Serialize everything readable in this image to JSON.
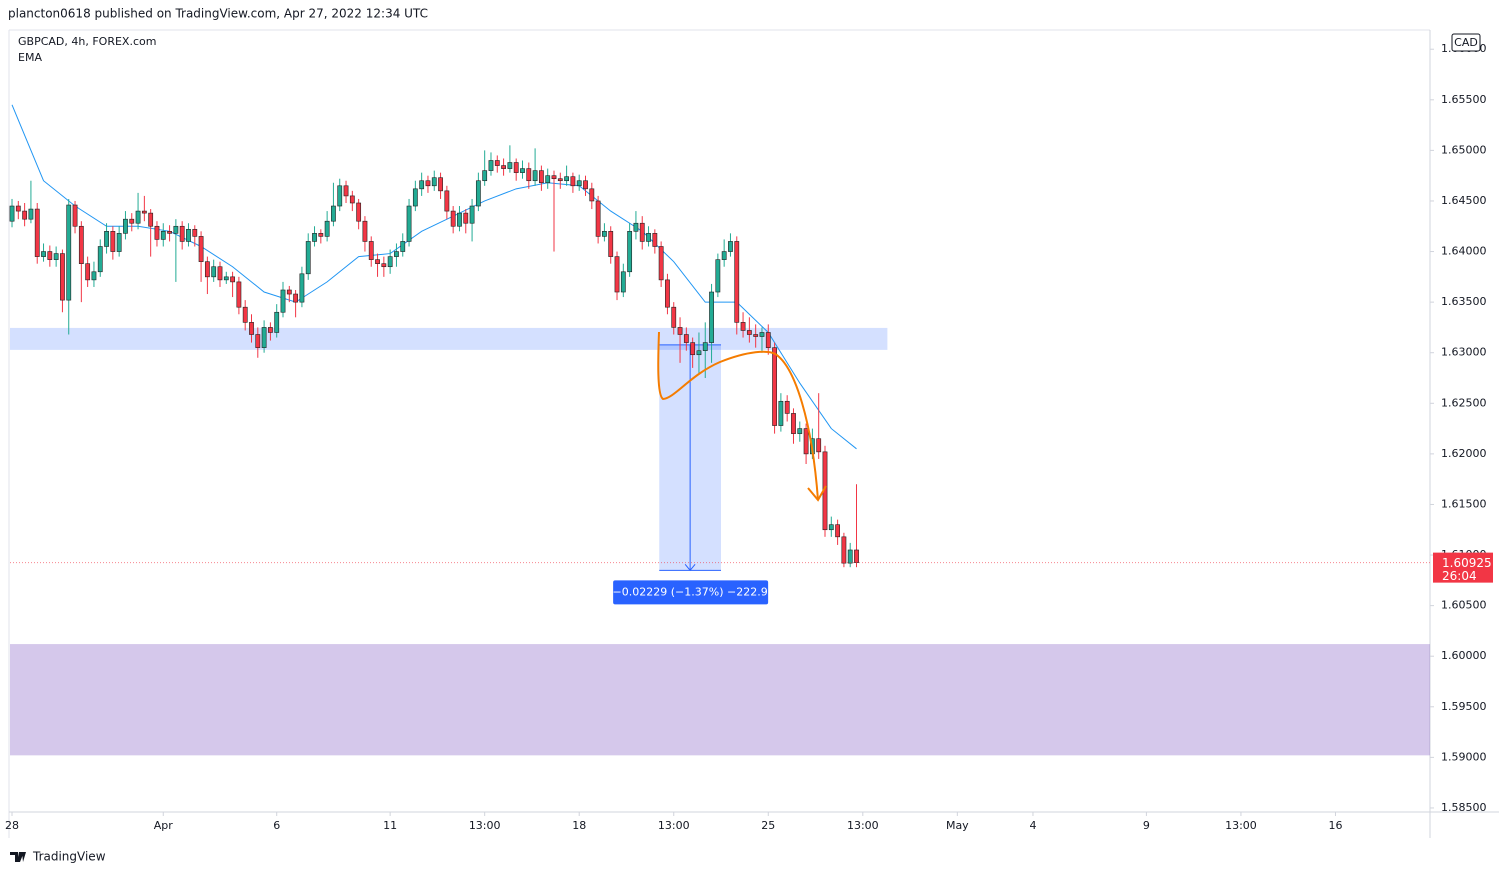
{
  "chart_data": {
    "type": "candlestick",
    "published": "plancton0618 published on TradingView.com, Apr 27, 2022 12:34 UTC",
    "title": "GBPCAD, 4h, FOREX.com",
    "currency": "CAD",
    "brand": "TradingView",
    "countdown": "26:04",
    "up_color": "#22ab94",
    "down_color": "#f23645",
    "xlim": [
      -0.32,
      225
    ],
    "ylim": [
      1.5846,
      1.6619
    ],
    "xticks": [
      {
        "value": 0,
        "label": "28"
      },
      {
        "value": 24,
        "label": "Apr"
      },
      {
        "value": 42,
        "label": "6"
      },
      {
        "value": 60,
        "label": "11"
      },
      {
        "value": 75,
        "label": "13:00"
      },
      {
        "value": 90,
        "label": "18"
      },
      {
        "value": 105,
        "label": "13:00"
      },
      {
        "value": 120,
        "label": "25"
      },
      {
        "value": 135,
        "label": "13:00"
      },
      {
        "value": 150,
        "label": "May"
      },
      {
        "value": 162,
        "label": "4"
      },
      {
        "value": 180,
        "label": "9"
      },
      {
        "value": 195,
        "label": "13:00"
      },
      {
        "value": 210,
        "label": "16"
      }
    ],
    "yticks": [
      {
        "value": 1.585,
        "label": "1.58500"
      },
      {
        "value": 1.59,
        "label": "1.59000"
      },
      {
        "value": 1.595,
        "label": "1.59500"
      },
      {
        "value": 1.6,
        "label": "1.60000"
      },
      {
        "value": 1.605,
        "label": "1.60500"
      },
      {
        "value": 1.61,
        "label": "1.61000"
      },
      {
        "value": 1.615,
        "label": "1.61500"
      },
      {
        "value": 1.62,
        "label": "1.62000"
      },
      {
        "value": 1.625,
        "label": "1.62500"
      },
      {
        "value": 1.63,
        "label": "1.63000"
      },
      {
        "value": 1.635,
        "label": "1.63500"
      },
      {
        "value": 1.64,
        "label": "1.64000"
      },
      {
        "value": 1.645,
        "label": "1.64500"
      },
      {
        "value": 1.65,
        "label": "1.65000"
      },
      {
        "value": 1.655,
        "label": "1.65500"
      },
      {
        "value": 1.66,
        "label": "1.66000"
      }
    ],
    "candles": [
      [
        1.643,
        1.6452,
        1.6424,
        1.6445
      ],
      [
        1.6445,
        1.645,
        1.6432,
        1.644
      ],
      [
        1.644,
        1.6448,
        1.6425,
        1.6432
      ],
      [
        1.6432,
        1.647,
        1.6428,
        1.6442
      ],
      [
        1.6442,
        1.6448,
        1.6388,
        1.6395
      ],
      [
        1.6395,
        1.6408,
        1.639,
        1.64
      ],
      [
        1.64,
        1.6406,
        1.6385,
        1.6392
      ],
      [
        1.6392,
        1.6405,
        1.6385,
        1.6398
      ],
      [
        1.6398,
        1.6402,
        1.634,
        1.6352
      ],
      [
        1.6352,
        1.6452,
        1.6318,
        1.6446
      ],
      [
        1.6446,
        1.645,
        1.6418,
        1.6425
      ],
      [
        1.6425,
        1.643,
        1.635,
        1.6388
      ],
      [
        1.6388,
        1.6395,
        1.6365,
        1.6372
      ],
      [
        1.6372,
        1.639,
        1.6365,
        1.638
      ],
      [
        1.638,
        1.6412,
        1.6375,
        1.6405
      ],
      [
        1.6405,
        1.6428,
        1.6398,
        1.642
      ],
      [
        1.642,
        1.6425,
        1.6392,
        1.64
      ],
      [
        1.64,
        1.6425,
        1.6395,
        1.6418
      ],
      [
        1.6418,
        1.644,
        1.6412,
        1.6432
      ],
      [
        1.6432,
        1.6438,
        1.642,
        1.6428
      ],
      [
        1.6428,
        1.6458,
        1.6422,
        1.644
      ],
      [
        1.644,
        1.6455,
        1.643,
        1.6438
      ],
      [
        1.6438,
        1.6442,
        1.6395,
        1.6425
      ],
      [
        1.6425,
        1.643,
        1.6405,
        1.6412
      ],
      [
        1.6412,
        1.6428,
        1.6405,
        1.642
      ],
      [
        1.642,
        1.6426,
        1.641,
        1.6418
      ],
      [
        1.6418,
        1.6432,
        1.637,
        1.6425
      ],
      [
        1.6425,
        1.643,
        1.6402,
        1.641
      ],
      [
        1.641,
        1.6428,
        1.6405,
        1.6422
      ],
      [
        1.6422,
        1.6426,
        1.6405,
        1.6415
      ],
      [
        1.6415,
        1.642,
        1.637,
        1.639
      ],
      [
        1.639,
        1.6395,
        1.6358,
        1.6375
      ],
      [
        1.6375,
        1.6392,
        1.637,
        1.6385
      ],
      [
        1.6385,
        1.639,
        1.6365,
        1.6372
      ],
      [
        1.6372,
        1.638,
        1.6368,
        1.6375
      ],
      [
        1.6375,
        1.638,
        1.6355,
        1.637
      ],
      [
        1.637,
        1.6375,
        1.6338,
        1.6345
      ],
      [
        1.6345,
        1.6352,
        1.6322,
        1.633
      ],
      [
        1.633,
        1.6338,
        1.631,
        1.6318
      ],
      [
        1.6318,
        1.6325,
        1.6295,
        1.6305
      ],
      [
        1.6305,
        1.6332,
        1.63,
        1.6325
      ],
      [
        1.6325,
        1.633,
        1.6312,
        1.632
      ],
      [
        1.632,
        1.6348,
        1.6315,
        1.634
      ],
      [
        1.634,
        1.637,
        1.6335,
        1.6362
      ],
      [
        1.6362,
        1.6366,
        1.635,
        1.6358
      ],
      [
        1.6358,
        1.6362,
        1.6335,
        1.635
      ],
      [
        1.635,
        1.6385,
        1.6345,
        1.6378
      ],
      [
        1.6378,
        1.6418,
        1.6372,
        1.641
      ],
      [
        1.641,
        1.6425,
        1.6405,
        1.6418
      ],
      [
        1.6418,
        1.6422,
        1.6408,
        1.6415
      ],
      [
        1.6415,
        1.644,
        1.641,
        1.643
      ],
      [
        1.643,
        1.6468,
        1.6425,
        1.6445
      ],
      [
        1.6445,
        1.6472,
        1.644,
        1.6465
      ],
      [
        1.6465,
        1.647,
        1.6448,
        1.6455
      ],
      [
        1.6455,
        1.646,
        1.644,
        1.6448
      ],
      [
        1.6448,
        1.6452,
        1.6422,
        1.643
      ],
      [
        1.643,
        1.6435,
        1.64,
        1.641
      ],
      [
        1.641,
        1.6415,
        1.6385,
        1.6392
      ],
      [
        1.6392,
        1.6398,
        1.6375,
        1.6388
      ],
      [
        1.6388,
        1.6395,
        1.6375,
        1.6385
      ],
      [
        1.6385,
        1.6402,
        1.6378,
        1.6395
      ],
      [
        1.6395,
        1.6408,
        1.6385,
        1.64
      ],
      [
        1.64,
        1.6418,
        1.6395,
        1.641
      ],
      [
        1.641,
        1.6452,
        1.6405,
        1.6445
      ],
      [
        1.6445,
        1.647,
        1.644,
        1.6462
      ],
      [
        1.6462,
        1.6478,
        1.6455,
        1.647
      ],
      [
        1.647,
        1.6475,
        1.6458,
        1.6465
      ],
      [
        1.6465,
        1.648,
        1.646,
        1.6473
      ],
      [
        1.6473,
        1.6478,
        1.6452,
        1.646
      ],
      [
        1.646,
        1.6465,
        1.6432,
        1.644
      ],
      [
        1.644,
        1.6445,
        1.6418,
        1.6425
      ],
      [
        1.6425,
        1.6445,
        1.642,
        1.6438
      ],
      [
        1.6438,
        1.6442,
        1.6418,
        1.6428
      ],
      [
        1.6428,
        1.6452,
        1.641,
        1.6445
      ],
      [
        1.6445,
        1.6478,
        1.644,
        1.647
      ],
      [
        1.647,
        1.65,
        1.6465,
        1.648
      ],
      [
        1.648,
        1.6498,
        1.6475,
        1.649
      ],
      [
        1.649,
        1.6495,
        1.6478,
        1.6485
      ],
      [
        1.6485,
        1.6492,
        1.6475,
        1.6482
      ],
      [
        1.6482,
        1.6505,
        1.6478,
        1.6488
      ],
      [
        1.6488,
        1.6492,
        1.647,
        1.6478
      ],
      [
        1.6478,
        1.649,
        1.6472,
        1.6482
      ],
      [
        1.6482,
        1.6488,
        1.6462,
        1.647
      ],
      [
        1.647,
        1.6502,
        1.6465,
        1.648
      ],
      [
        1.648,
        1.6485,
        1.646,
        1.6468
      ],
      [
        1.6468,
        1.6482,
        1.6462,
        1.6475
      ],
      [
        1.6475,
        1.648,
        1.64,
        1.6472
      ],
      [
        1.6472,
        1.6478,
        1.6462,
        1.647
      ],
      [
        1.647,
        1.6485,
        1.6465,
        1.6474
      ],
      [
        1.6474,
        1.6478,
        1.6458,
        1.6465
      ],
      [
        1.6465,
        1.6476,
        1.646,
        1.647
      ],
      [
        1.647,
        1.6475,
        1.6455,
        1.6462
      ],
      [
        1.6462,
        1.6468,
        1.6442,
        1.645
      ],
      [
        1.645,
        1.6455,
        1.6408,
        1.6415
      ],
      [
        1.6415,
        1.6428,
        1.641,
        1.642
      ],
      [
        1.642,
        1.6425,
        1.6388,
        1.6395
      ],
      [
        1.6395,
        1.64,
        1.6352,
        1.636
      ],
      [
        1.636,
        1.6388,
        1.6355,
        1.638
      ],
      [
        1.638,
        1.6428,
        1.6375,
        1.642
      ],
      [
        1.642,
        1.644,
        1.6412,
        1.6428
      ],
      [
        1.6428,
        1.6435,
        1.6402,
        1.641
      ],
      [
        1.641,
        1.6425,
        1.6405,
        1.6418
      ],
      [
        1.6418,
        1.6422,
        1.6398,
        1.6405
      ],
      [
        1.6405,
        1.641,
        1.6365,
        1.6372
      ],
      [
        1.6372,
        1.6378,
        1.6338,
        1.6345
      ],
      [
        1.6345,
        1.635,
        1.6318,
        1.6325
      ],
      [
        1.6325,
        1.6335,
        1.629,
        1.6318
      ],
      [
        1.6318,
        1.6325,
        1.6302,
        1.631
      ],
      [
        1.631,
        1.6315,
        1.6285,
        1.6298
      ],
      [
        1.6298,
        1.632,
        1.6278,
        1.6302
      ],
      [
        1.6302,
        1.633,
        1.6275,
        1.631
      ],
      [
        1.631,
        1.6368,
        1.629,
        1.636
      ],
      [
        1.636,
        1.6398,
        1.6355,
        1.6392
      ],
      [
        1.6392,
        1.6412,
        1.6385,
        1.64
      ],
      [
        1.64,
        1.6418,
        1.6395,
        1.641
      ],
      [
        1.641,
        1.6415,
        1.6318,
        1.633
      ],
      [
        1.633,
        1.634,
        1.6315,
        1.6322
      ],
      [
        1.6322,
        1.6335,
        1.631,
        1.6318
      ],
      [
        1.6318,
        1.6328,
        1.6305,
        1.6316
      ],
      [
        1.6316,
        1.6325,
        1.63,
        1.632
      ],
      [
        1.632,
        1.6328,
        1.6298,
        1.6305
      ],
      [
        1.6305,
        1.631,
        1.622,
        1.6228
      ],
      [
        1.6228,
        1.626,
        1.6222,
        1.6252
      ],
      [
        1.6252,
        1.6258,
        1.6232,
        1.624
      ],
      [
        1.624,
        1.6245,
        1.621,
        1.622
      ],
      [
        1.622,
        1.6232,
        1.6212,
        1.6225
      ],
      [
        1.6225,
        1.623,
        1.619,
        1.62
      ],
      [
        1.62,
        1.6225,
        1.6195,
        1.6215
      ],
      [
        1.6215,
        1.626,
        1.6195,
        1.6202
      ],
      [
        1.6202,
        1.6208,
        1.6118,
        1.6125
      ],
      [
        1.6125,
        1.6138,
        1.6118,
        1.613
      ],
      [
        1.613,
        1.6135,
        1.611,
        1.6118
      ],
      [
        1.6118,
        1.6122,
        1.6088,
        1.6092
      ],
      [
        1.6092,
        1.6112,
        1.6088,
        1.6105
      ],
      [
        1.6105,
        1.617,
        1.6088,
        1.60925
      ]
    ],
    "ema": {
      "name": "EMA",
      "color": "#2196f3",
      "x": [
        0,
        5,
        10,
        15,
        20,
        25,
        30,
        35,
        40,
        45,
        50,
        55,
        60,
        65,
        70,
        75,
        80,
        85,
        90,
        95,
        100,
        105,
        110,
        115,
        120,
        125,
        130,
        134
      ],
      "values": [
        1.6545,
        1.647,
        1.6445,
        1.6425,
        1.6425,
        1.642,
        1.6405,
        1.6385,
        1.636,
        1.635,
        1.637,
        1.6395,
        1.6398,
        1.642,
        1.6435,
        1.645,
        1.6462,
        1.6468,
        1.6465,
        1.644,
        1.642,
        1.639,
        1.635,
        1.635,
        1.632,
        1.627,
        1.6225,
        1.6205
      ]
    },
    "zones": [
      {
        "x": [
          -0.32,
          138.9
        ],
        "y": [
          1.63028,
          1.63245
        ],
        "color": "rgba(41,98,255,0.2)"
      },
      {
        "x": [
          -0.32,
          225
        ],
        "y": [
          1.5902,
          1.6012
        ],
        "color": "rgba(103,58,183,0.28)"
      }
    ],
    "measure": {
      "x": [
        102.7,
        112.5
      ],
      "from": 1.63078,
      "to": 1.60849,
      "label": "−0.02229 (−1.37%) −222.9"
    }
  }
}
